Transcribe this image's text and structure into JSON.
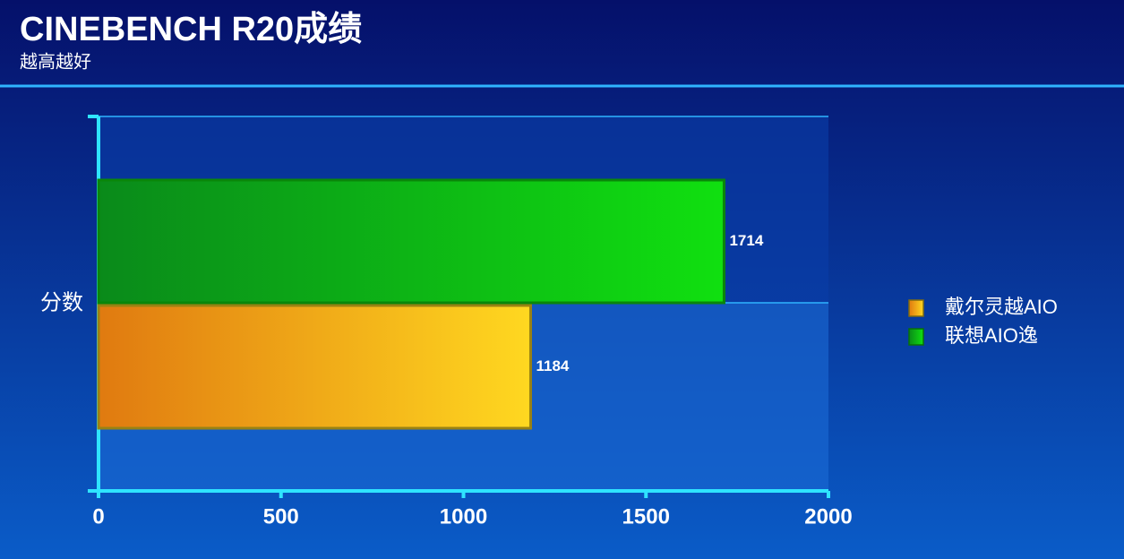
{
  "chart_data": {
    "type": "bar",
    "orientation": "horizontal",
    "title": "CINEBENCH R20成绩",
    "subtitle": "越高越好",
    "categories": [
      "分数"
    ],
    "series": [
      {
        "name": "戴尔灵越AIO",
        "color": "#ffd820",
        "values": [
          1184
        ]
      },
      {
        "name": "联想AIO逸",
        "color": "#10e010",
        "values": [
          1714
        ]
      }
    ],
    "xlim": [
      0,
      2000
    ],
    "xticks": [
      0,
      500,
      1000,
      1500,
      2000
    ],
    "legend": "right"
  }
}
